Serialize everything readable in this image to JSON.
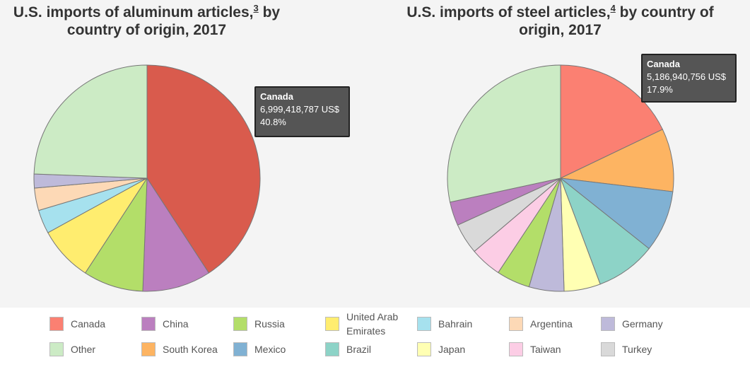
{
  "chart_data": [
    {
      "type": "pie",
      "title": "U.S. imports of aluminum articles,",
      "title_footnote": "3",
      "title_suffix": "by country of origin, 2017",
      "slices": [
        {
          "label": "Canada",
          "value": 40.8,
          "color": "#d95b4d"
        },
        {
          "label": "China",
          "value": 9.8,
          "color": "#bb7fbf"
        },
        {
          "label": "Russia",
          "value": 8.6,
          "color": "#b3de69"
        },
        {
          "label": "United Arab Emirates",
          "value": 7.8,
          "color": "#ffed6f"
        },
        {
          "label": "Bahrain",
          "value": 3.4,
          "color": "#a6e1ee"
        },
        {
          "label": "Argentina",
          "value": 3.2,
          "color": "#fdd9b6"
        },
        {
          "label": "Germany",
          "value": 2.0,
          "color": "#bebada"
        },
        {
          "label": "Other",
          "value": 24.4,
          "color": "#ccebc5"
        }
      ],
      "tooltip": {
        "name": "Canada",
        "value_text": "6,999,418,787 US$",
        "percent_text": "40.8%"
      }
    },
    {
      "type": "pie",
      "title": "U.S. imports of steel articles,",
      "title_footnote": "4",
      "title_suffix": "by country of origin, 2017",
      "slices": [
        {
          "label": "Canada",
          "value": 17.9,
          "color": "#fb8072"
        },
        {
          "label": "South Korea",
          "value": 9.0,
          "color": "#fdb462"
        },
        {
          "label": "Mexico",
          "value": 8.8,
          "color": "#80b1d3"
        },
        {
          "label": "Brazil",
          "value": 8.6,
          "color": "#8dd3c7"
        },
        {
          "label": "Japan",
          "value": 5.2,
          "color": "#ffffb3"
        },
        {
          "label": "Germany",
          "value": 5.0,
          "color": "#bebada"
        },
        {
          "label": "Russia",
          "value": 4.8,
          "color": "#b3de69"
        },
        {
          "label": "Taiwan",
          "value": 4.5,
          "color": "#fccde5"
        },
        {
          "label": "Turkey",
          "value": 4.4,
          "color": "#d9d9d9"
        },
        {
          "label": "China",
          "value": 3.4,
          "color": "#bb7fbf"
        },
        {
          "label": "Other",
          "value": 28.4,
          "color": "#ccebc5"
        }
      ],
      "tooltip": {
        "name": "Canada",
        "value_text": "5,186,940,756 US$",
        "percent_text": "17.9%"
      }
    }
  ],
  "legend": [
    {
      "label": "Canada",
      "color": "#fb8072"
    },
    {
      "label": "China",
      "color": "#bb7fbf"
    },
    {
      "label": "Russia",
      "color": "#b3de69"
    },
    {
      "label": "United Arab Emirates",
      "color": "#ffed6f"
    },
    {
      "label": "Bahrain",
      "color": "#a6e1ee"
    },
    {
      "label": "Argentina",
      "color": "#fdd9b6"
    },
    {
      "label": "Germany",
      "color": "#bebada"
    },
    {
      "label": "Other",
      "color": "#ccebc5"
    },
    {
      "label": "South Korea",
      "color": "#fdb462"
    },
    {
      "label": "Mexico",
      "color": "#80b1d3"
    },
    {
      "label": "Brazil",
      "color": "#8dd3c7"
    },
    {
      "label": "Japan",
      "color": "#ffffb3"
    },
    {
      "label": "Taiwan",
      "color": "#fccde5"
    },
    {
      "label": "Turkey",
      "color": "#d9d9d9"
    }
  ]
}
